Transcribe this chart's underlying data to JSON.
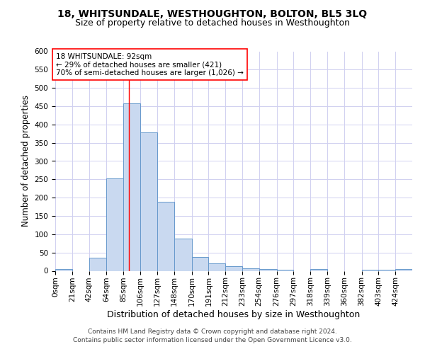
{
  "title": "18, WHITSUNDALE, WESTHOUGHTON, BOLTON, BL5 3LQ",
  "subtitle": "Size of property relative to detached houses in Westhoughton",
  "xlabel": "Distribution of detached houses by size in Westhoughton",
  "ylabel": "Number of detached properties",
  "bin_labels": [
    "0sqm",
    "21sqm",
    "42sqm",
    "64sqm",
    "85sqm",
    "106sqm",
    "127sqm",
    "148sqm",
    "170sqm",
    "191sqm",
    "212sqm",
    "233sqm",
    "254sqm",
    "276sqm",
    "297sqm",
    "318sqm",
    "339sqm",
    "360sqm",
    "382sqm",
    "403sqm",
    "424sqm"
  ],
  "bin_edges": [
    0,
    21,
    42,
    64,
    85,
    106,
    127,
    148,
    170,
    191,
    212,
    233,
    254,
    276,
    297,
    318,
    339,
    360,
    382,
    403,
    424,
    445
  ],
  "bar_values": [
    5,
    0,
    35,
    252,
    458,
    378,
    188,
    88,
    37,
    20,
    13,
    6,
    5,
    3,
    0,
    5,
    0,
    0,
    3,
    3,
    5
  ],
  "bar_facecolor": "#c9d9f0",
  "bar_edgecolor": "#6699cc",
  "grid_color": "#d0d0f0",
  "background_color": "#ffffff",
  "red_line_x": 92,
  "annotation_text": "18 WHITSUNDALE: 92sqm\n← 29% of detached houses are smaller (421)\n70% of semi-detached houses are larger (1,026) →",
  "ylim": [
    0,
    600
  ],
  "yticks": [
    0,
    50,
    100,
    150,
    200,
    250,
    300,
    350,
    400,
    450,
    500,
    550,
    600
  ],
  "footer_line1": "Contains HM Land Registry data © Crown copyright and database right 2024.",
  "footer_line2": "Contains public sector information licensed under the Open Government Licence v3.0.",
  "title_fontsize": 10,
  "subtitle_fontsize": 9,
  "xlabel_fontsize": 9,
  "ylabel_fontsize": 8.5,
  "tick_fontsize": 7.5,
  "annotation_fontsize": 7.5,
  "footer_fontsize": 6.5
}
